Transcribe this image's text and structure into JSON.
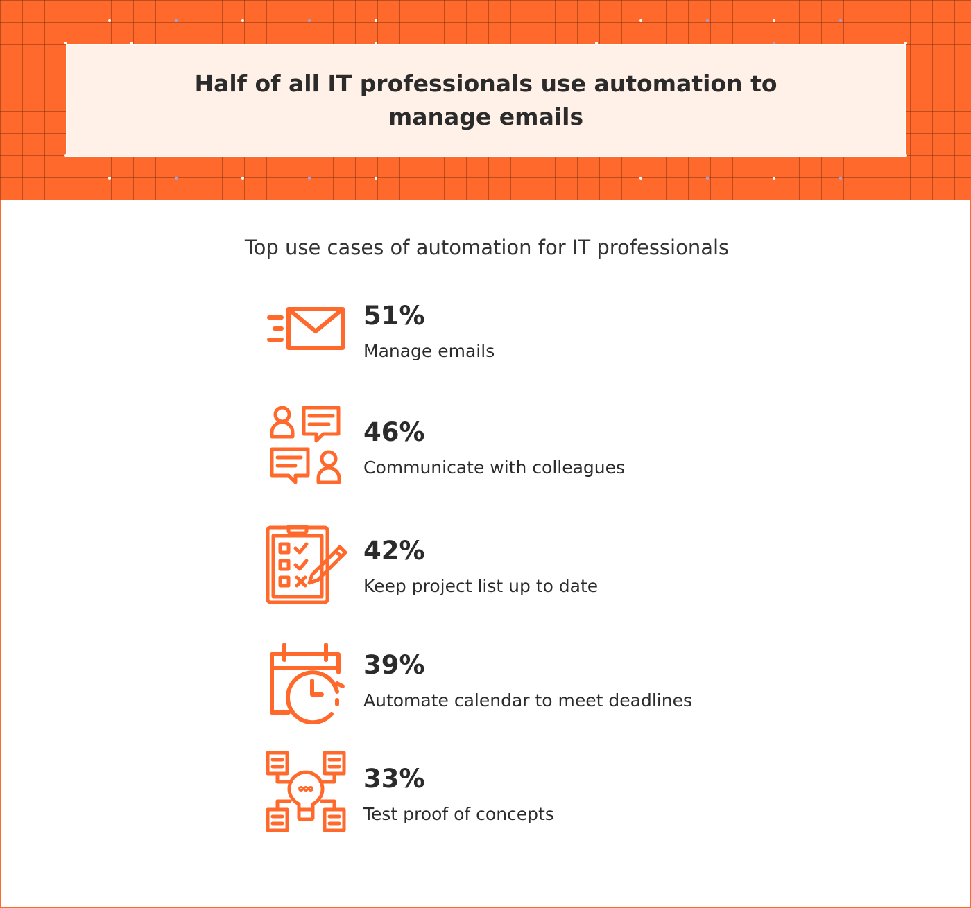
{
  "header": {
    "title": "Half of all IT professionals use automation to manage emails"
  },
  "colors": {
    "accent": "#ff6a2c",
    "text": "#2b2b2b",
    "title_box": "#fff0e8"
  },
  "chart_data": {
    "type": "table",
    "title": "Half of all IT professionals use automation to manage emails",
    "subtitle": "Top use cases of automation for IT professionals",
    "items": [
      {
        "value": 51,
        "value_label": "51%",
        "label": "Manage emails",
        "icon": "envelope-icon"
      },
      {
        "value": 46,
        "value_label": "46%",
        "label": "Communicate with colleagues",
        "icon": "chat-people-icon"
      },
      {
        "value": 42,
        "value_label": "42%",
        "label": "Keep project list up to date",
        "icon": "clipboard-checklist-icon"
      },
      {
        "value": 39,
        "value_label": "39%",
        "label": "Automate calendar to meet deadlines",
        "icon": "calendar-clock-icon"
      },
      {
        "value": 33,
        "value_label": "33%",
        "label": "Test proof of concepts",
        "icon": "lightbulb-network-icon"
      }
    ]
  }
}
